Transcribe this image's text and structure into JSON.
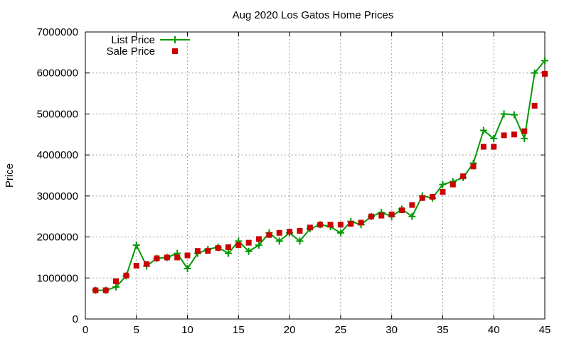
{
  "chart_data": {
    "type": "line",
    "title": "Aug 2020 Los Gatos Home Prices",
    "xlabel": "",
    "ylabel": "Price",
    "xlim": [
      0,
      45
    ],
    "ylim": [
      0,
      7000000
    ],
    "x_ticks": [
      "0",
      "5",
      "10",
      "15",
      "20",
      "25",
      "30",
      "35",
      "40",
      "45"
    ],
    "y_ticks": [
      "0",
      "1000000",
      "2000000",
      "3000000",
      "4000000",
      "5000000",
      "6000000",
      "7000000"
    ],
    "grid": true,
    "legend_position": "top-left",
    "x": [
      1,
      2,
      3,
      4,
      5,
      6,
      7,
      8,
      9,
      10,
      11,
      12,
      13,
      14,
      15,
      16,
      17,
      18,
      19,
      20,
      21,
      22,
      23,
      24,
      25,
      26,
      27,
      28,
      29,
      30,
      31,
      32,
      33,
      34,
      35,
      36,
      37,
      38,
      39,
      40,
      41,
      42,
      43,
      44,
      45
    ],
    "series": [
      {
        "name": "List Price",
        "style": "linespoints",
        "marker": "plus",
        "color": "#009900",
        "values": [
          700000,
          700000,
          780000,
          1050000,
          1800000,
          1290000,
          1480000,
          1500000,
          1600000,
          1230000,
          1600000,
          1700000,
          1750000,
          1600000,
          1900000,
          1650000,
          1800000,
          2100000,
          1900000,
          2100000,
          1900000,
          2200000,
          2300000,
          2250000,
          2100000,
          2380000,
          2300000,
          2500000,
          2600000,
          2500000,
          2680000,
          2500000,
          3000000,
          2950000,
          3280000,
          3350000,
          3450000,
          3800000,
          4600000,
          4400000,
          5000000,
          4980000,
          4400000,
          6000000,
          6300000
        ]
      },
      {
        "name": "Sale Price",
        "style": "points",
        "marker": "square",
        "color": "#cc0000",
        "values": [
          700000,
          700000,
          920000,
          1060000,
          1300000,
          1340000,
          1480000,
          1500000,
          1500000,
          1550000,
          1660000,
          1660000,
          1730000,
          1750000,
          1800000,
          1860000,
          1950000,
          2050000,
          2100000,
          2130000,
          2150000,
          2230000,
          2300000,
          2300000,
          2300000,
          2320000,
          2350000,
          2500000,
          2520000,
          2550000,
          2650000,
          2780000,
          2950000,
          2980000,
          3100000,
          3280000,
          3480000,
          3720000,
          4200000,
          4200000,
          4480000,
          4500000,
          4580000,
          5200000,
          5980000
        ]
      }
    ]
  }
}
